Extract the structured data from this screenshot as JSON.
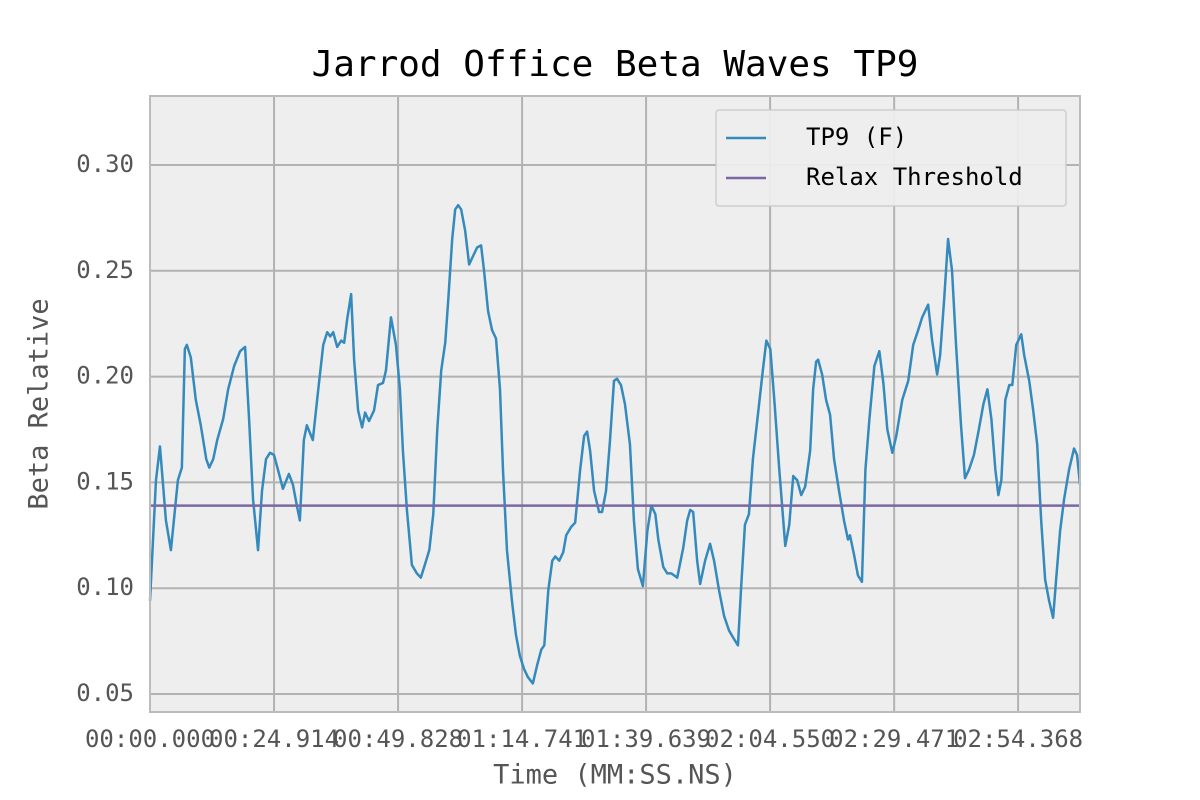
{
  "chart_data": {
    "type": "line",
    "title": "Jarrod Office Beta Waves TP9",
    "xlabel": "Time (MM:SS.NS)",
    "ylabel": "Beta Relative",
    "xlim": [
      0,
      186.8
    ],
    "ylim": [
      0.0415,
      0.3326
    ],
    "xticks": [
      {
        "value": 0,
        "label": "00:00.000"
      },
      {
        "value": 24.914,
        "label": "00:24.914"
      },
      {
        "value": 49.828,
        "label": "00:49.828"
      },
      {
        "value": 74.741,
        "label": "01:14.741"
      },
      {
        "value": 99.639,
        "label": "01:39.639"
      },
      {
        "value": 124.55,
        "label": "02:04.550"
      },
      {
        "value": 149.471,
        "label": "02:29.471"
      },
      {
        "value": 174.368,
        "label": "02:54.368"
      }
    ],
    "yticks": [
      0.05,
      {
        "value": 0.1,
        "label": "0.10"
      },
      0.15,
      {
        "value": 0.2,
        "label": "0.20"
      },
      0.25,
      {
        "value": 0.3,
        "label": "0.30"
      }
    ],
    "grid": true,
    "legend": "upper right",
    "series": [
      {
        "name": "TP9 (F)",
        "color": "#348abd",
        "x": [
          0,
          1.2,
          2.0,
          3.2,
          4.2,
          5.6,
          6.4,
          7.0,
          7.4,
          8.2,
          9.2,
          10.2,
          11.3,
          11.9,
          12.7,
          13.5,
          14.7,
          15.7,
          16.9,
          18.1,
          19.1,
          19.9,
          20.7,
          21.7,
          22.5,
          23.3,
          24.1,
          24.9,
          25.7,
          26.7,
          27.9,
          28.7,
          29.5,
          30.1,
          30.9,
          31.5,
          32.7,
          33.8,
          34.8,
          35.6,
          36.2,
          36.8,
          37.6,
          38.4,
          39.0,
          39.6,
          40.4,
          41.0,
          41.8,
          42.6,
          43.2,
          44.0,
          45.0,
          45.8,
          46.8,
          47.4,
          48.4,
          49.4,
          50.2,
          50.8,
          51.6,
          52.6,
          53.6,
          54.4,
          55.2,
          56.1,
          56.9,
          57.7,
          58.5,
          59.3,
          59.9,
          60.7,
          61.3,
          61.9,
          62.5,
          63.3,
          64.1,
          64.9,
          65.7,
          66.5,
          67.1,
          67.9,
          68.7,
          69.5,
          70.3,
          70.9,
          71.7,
          72.7,
          73.5,
          74.3,
          75.1,
          75.9,
          76.9,
          77.8,
          78.6,
          79.2,
          80.0,
          80.8,
          81.4,
          82.2,
          83.0,
          83.6,
          84.6,
          85.4,
          86.4,
          87.2,
          87.8,
          88.4,
          89.2,
          90.2,
          90.8,
          91.6,
          92.4,
          93.2,
          93.8,
          94.6,
          95.4,
          96.4,
          97.2,
          98.0,
          99.0,
          99.9,
          100.7,
          101.5,
          102.1,
          103.1,
          103.9,
          104.7,
          105.9,
          107.1,
          107.9,
          108.5,
          109.1,
          109.9,
          110.5,
          111.5,
          112.5,
          113.3,
          114.3,
          115.3,
          116.3,
          117.3,
          118.1,
          118.7,
          119.5,
          120.3,
          121.1,
          122.2,
          123.0,
          123.8,
          124.6,
          125.4,
          126.4,
          127.6,
          128.4,
          129.2,
          130.0,
          130.8,
          131.6,
          132.6,
          133.2,
          133.8,
          134.2,
          135.0,
          135.8,
          136.6,
          137.4,
          138.4,
          139.4,
          140.2,
          140.6,
          141.4,
          142.2,
          143.0,
          143.7,
          144.5,
          145.5,
          146.5,
          147.3,
          148.1,
          149.1,
          149.9,
          151.1,
          152.3,
          153.3,
          154.3,
          155.1,
          156.3,
          157.1,
          158.1,
          158.7,
          159.5,
          160.3,
          161.1,
          161.9,
          162.9,
          163.7,
          164.5,
          165.5,
          166.4,
          167.4,
          168.2,
          169.0,
          169.8,
          170.4,
          171.0,
          171.8,
          172.6,
          173.2,
          174.0,
          175.0,
          175.6,
          176.6,
          177.4,
          178.2,
          179.0,
          179.8,
          180.6,
          181.4,
          182.0,
          182.8,
          183.6,
          184.6,
          185.6,
          186.2,
          186.8
        ],
        "values": [
          0.094,
          0.151,
          0.167,
          0.132,
          0.118,
          0.151,
          0.157,
          0.213,
          0.215,
          0.209,
          0.189,
          0.177,
          0.161,
          0.157,
          0.161,
          0.17,
          0.18,
          0.194,
          0.205,
          0.212,
          0.214,
          0.18,
          0.142,
          0.118,
          0.146,
          0.161,
          0.164,
          0.163,
          0.156,
          0.147,
          0.154,
          0.149,
          0.139,
          0.132,
          0.17,
          0.177,
          0.17,
          0.194,
          0.215,
          0.221,
          0.219,
          0.221,
          0.214,
          0.217,
          0.216,
          0.227,
          0.239,
          0.208,
          0.184,
          0.176,
          0.183,
          0.179,
          0.184,
          0.196,
          0.197,
          0.203,
          0.228,
          0.215,
          0.194,
          0.165,
          0.137,
          0.111,
          0.107,
          0.105,
          0.111,
          0.118,
          0.135,
          0.175,
          0.203,
          0.216,
          0.236,
          0.265,
          0.279,
          0.281,
          0.279,
          0.269,
          0.253,
          0.257,
          0.261,
          0.262,
          0.25,
          0.231,
          0.222,
          0.218,
          0.194,
          0.156,
          0.118,
          0.094,
          0.078,
          0.068,
          0.062,
          0.058,
          0.055,
          0.064,
          0.071,
          0.073,
          0.099,
          0.113,
          0.115,
          0.113,
          0.117,
          0.125,
          0.129,
          0.131,
          0.156,
          0.172,
          0.174,
          0.165,
          0.146,
          0.136,
          0.136,
          0.146,
          0.17,
          0.198,
          0.199,
          0.196,
          0.187,
          0.168,
          0.132,
          0.109,
          0.101,
          0.127,
          0.139,
          0.135,
          0.123,
          0.11,
          0.107,
          0.107,
          0.105,
          0.119,
          0.132,
          0.137,
          0.136,
          0.113,
          0.102,
          0.113,
          0.121,
          0.113,
          0.099,
          0.087,
          0.08,
          0.076,
          0.073,
          0.099,
          0.13,
          0.135,
          0.161,
          0.184,
          0.201,
          0.217,
          0.213,
          0.189,
          0.156,
          0.12,
          0.13,
          0.153,
          0.151,
          0.144,
          0.148,
          0.165,
          0.194,
          0.207,
          0.208,
          0.201,
          0.189,
          0.182,
          0.161,
          0.146,
          0.132,
          0.123,
          0.125,
          0.116,
          0.106,
          0.103,
          0.156,
          0.18,
          0.205,
          0.212,
          0.197,
          0.175,
          0.164,
          0.172,
          0.189,
          0.198,
          0.215,
          0.222,
          0.228,
          0.234,
          0.217,
          0.201,
          0.21,
          0.236,
          0.265,
          0.25,
          0.215,
          0.177,
          0.152,
          0.156,
          0.163,
          0.174,
          0.187,
          0.194,
          0.18,
          0.156,
          0.144,
          0.151,
          0.189,
          0.196,
          0.196,
          0.215,
          0.22,
          0.21,
          0.198,
          0.184,
          0.168,
          0.132,
          0.104,
          0.094,
          0.086,
          0.104,
          0.127,
          0.142,
          0.156,
          0.166,
          0.163,
          0.149
        ]
      },
      {
        "name": "Relax Threshold",
        "color": "#7a68a6",
        "x": [
          0,
          186.8
        ],
        "values": [
          0.139,
          0.139
        ]
      }
    ]
  }
}
